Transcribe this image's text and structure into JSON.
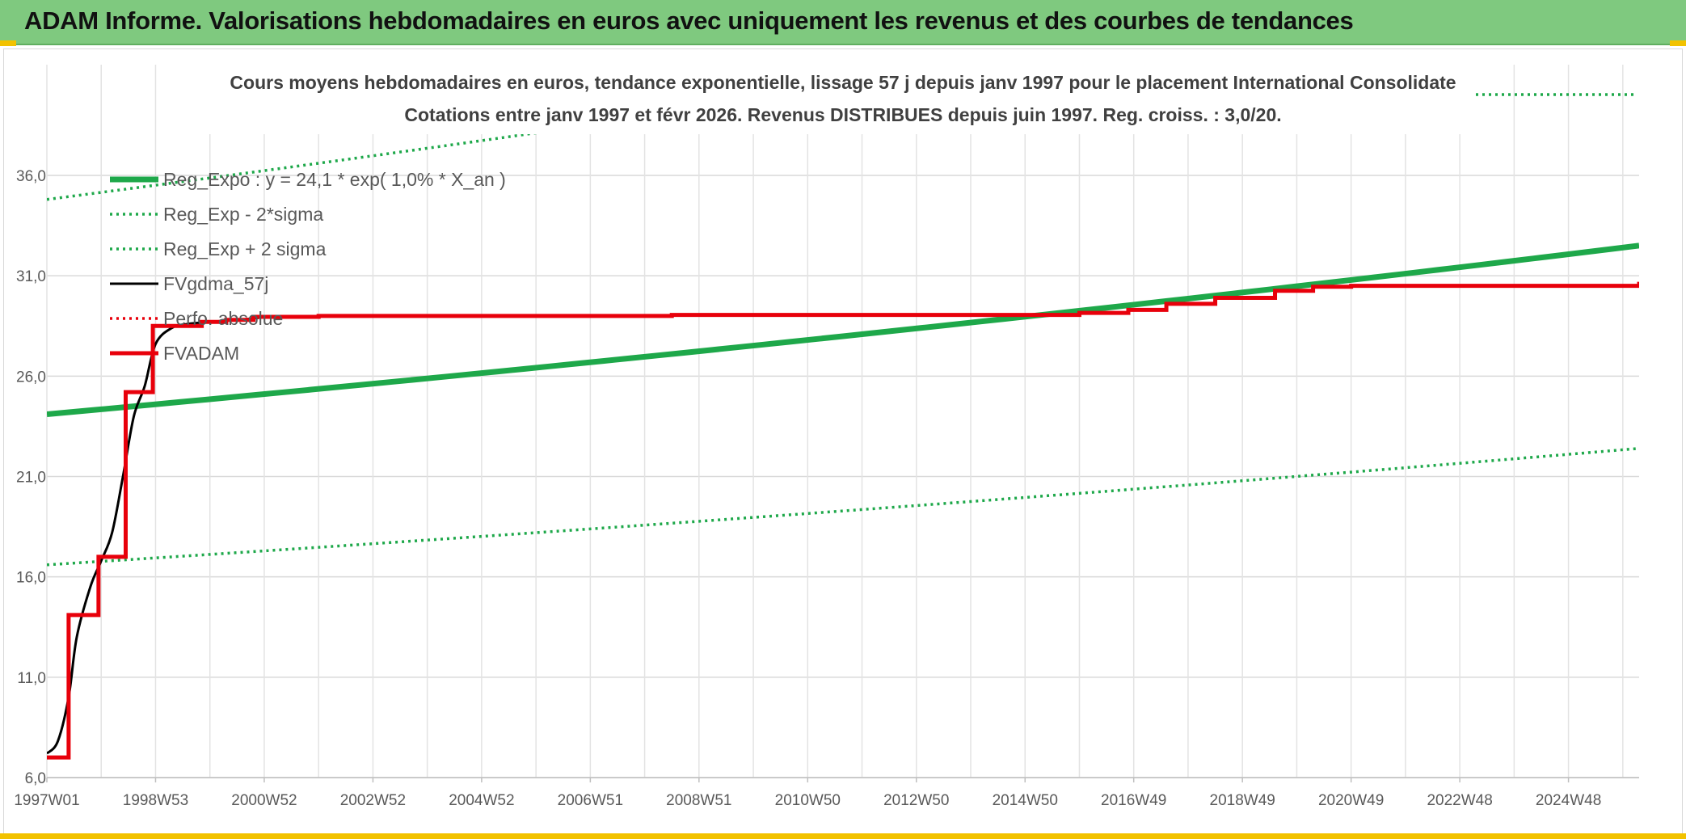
{
  "banner": {
    "title": "ADAM Informe. Valorisations hebdomadaires en euros avec uniquement les revenus et des courbes de tendances"
  },
  "colors": {
    "banner_bg": "#7fc97f",
    "reg_green": "#1ea84a",
    "red": "#e8000b",
    "black": "#000000",
    "corner_yellow": "#f2c200"
  },
  "chart_data": {
    "type": "line",
    "title": "Cours moyens hebdomadaires en euros, tendance exponentielle, lissage 57 j depuis janv 1997 pour le placement International Consolidate",
    "subtitle": "Cotations entre janv 1997 et févr 2026. Revenus DISTRIBUES depuis juin 1997. Reg. croiss. : 3,0/20.",
    "xlabel": "",
    "ylabel": "",
    "ylim": [
      6,
      39
    ],
    "yticks": [
      "36,0",
      "31,0",
      "26,0",
      "21,0",
      "16,0",
      "11,0",
      "6,0"
    ],
    "ytick_values": [
      36,
      31,
      26,
      21,
      16,
      11,
      6
    ],
    "xticks": [
      "1997W01",
      "1998W53",
      "2000W52",
      "2002W52",
      "2004W52",
      "2006W51",
      "2008W51",
      "2010W50",
      "2012W50",
      "2014W50",
      "2016W49",
      "2018W49",
      "2020W49",
      "2022W48",
      "2024W48"
    ],
    "xtick_years": [
      1997.0,
      1999.0,
      2001.0,
      2003.0,
      2005.0,
      2007.0,
      2009.0,
      2011.0,
      2013.0,
      2015.0,
      2017.0,
      2019.0,
      2021.0,
      2023.0,
      2025.0
    ],
    "xlim": [
      1997.0,
      2026.3
    ],
    "grid": true,
    "legend_position": "top-left",
    "series": [
      {
        "name": "Reg_Expo : y = 24,1 * exp( 1,0% *  X_an )",
        "style": "solid-thick",
        "color": "#1ea84a",
        "x": [
          1997.0,
          2026.3
        ],
        "y": [
          24.1,
          32.5
        ]
      },
      {
        "name": "Reg_Exp - 2*sigma",
        "style": "dotted",
        "color": "#1ea84a",
        "x": [
          1997.0,
          2026.3
        ],
        "y": [
          16.6,
          22.4
        ]
      },
      {
        "name": "Reg_Exp + 2 sigma",
        "style": "dotted",
        "color": "#1ea84a",
        "x": [
          1997.0,
          2026.3
        ],
        "y": [
          34.8,
          46.8
        ]
      },
      {
        "name": "FVgdma_57j",
        "style": "solid",
        "color": "#000000",
        "x": [
          1997.0,
          1997.2,
          1997.4,
          1997.55,
          1997.8,
          1998.0,
          1998.2,
          1998.4,
          1998.6,
          1998.8,
          1999.0,
          1999.3,
          1999.6,
          2000.0,
          2000.5,
          2000.9
        ],
        "y": [
          7.2,
          7.8,
          10.0,
          13.0,
          15.5,
          16.8,
          18.2,
          21.0,
          24.0,
          25.5,
          27.6,
          28.4,
          28.6,
          28.7,
          28.8,
          28.9
        ]
      },
      {
        "name": "Perfo. absolue",
        "style": "dotted",
        "color": "#e8000b",
        "x": [],
        "y": []
      },
      {
        "name": "FVADAM",
        "style": "step-thick",
        "color": "#e8000b",
        "x": [
          1997.0,
          1997.4,
          1997.95,
          1998.45,
          1998.95,
          1999.85,
          2000.3,
          2000.8,
          2002.0,
          2008.5,
          2015.0,
          2016.0,
          2016.9,
          2017.6,
          2018.5,
          2019.6,
          2020.3,
          2021.0,
          2024.0,
          2026.3
        ],
        "y": [
          7.0,
          14.1,
          17.0,
          25.2,
          28.5,
          28.7,
          28.8,
          28.95,
          29.0,
          29.05,
          29.05,
          29.15,
          29.3,
          29.6,
          29.9,
          30.25,
          30.45,
          30.5,
          30.5,
          30.7
        ]
      }
    ]
  }
}
